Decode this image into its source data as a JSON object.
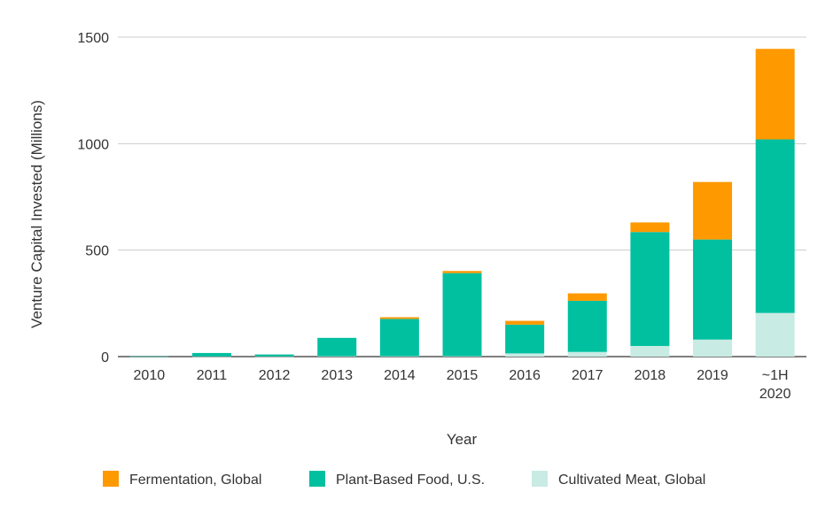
{
  "chart_data": {
    "type": "bar",
    "stacked": true,
    "title": "",
    "xlabel": "Year",
    "ylabel": "Venture Capital Invested (Millions)",
    "ylim": [
      0,
      1500
    ],
    "yticks": [
      0,
      500,
      1000,
      1500
    ],
    "grid": true,
    "legend_position": "bottom",
    "categories": [
      "2010",
      "2011",
      "2012",
      "2013",
      "2014",
      "2015",
      "2016",
      "2017",
      "2018",
      "2019",
      "~1H 2020"
    ],
    "series": [
      {
        "name": "Cultivated Meat, Global",
        "color": "#c8ebe4",
        "values": [
          0,
          1,
          1,
          2,
          2,
          2,
          15,
          22,
          50,
          80,
          205
        ]
      },
      {
        "name": "Plant-Based Food, U.S.",
        "color": "#00c0a0",
        "values": [
          1,
          16,
          9,
          86,
          175,
          390,
          135,
          240,
          535,
          470,
          815
        ]
      },
      {
        "name": "Fermentation, Global",
        "color": "#ff9900",
        "values": [
          0,
          0,
          0,
          0,
          8,
          10,
          18,
          35,
          45,
          270,
          425
        ]
      }
    ],
    "legend_order": [
      "Fermentation, Global",
      "Plant-Based Food, U.S.",
      "Cultivated Meat, Global"
    ]
  }
}
